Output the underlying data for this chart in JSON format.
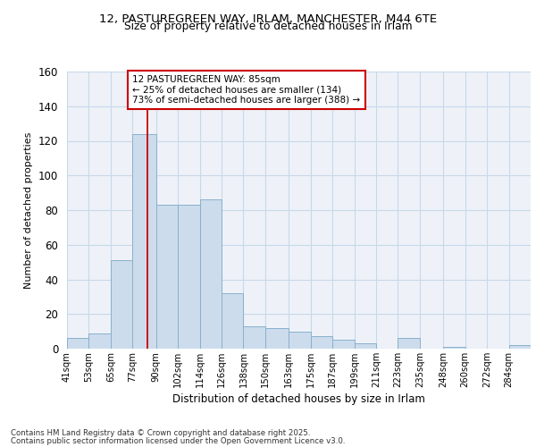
{
  "title1": "12, PASTUREGREEN WAY, IRLAM, MANCHESTER, M44 6TE",
  "title2": "Size of property relative to detached houses in Irlam",
  "xlabel": "Distribution of detached houses by size in Irlam",
  "ylabel": "Number of detached properties",
  "bar_color": "#ccdcec",
  "bar_edge_color": "#8ab0cc",
  "bar_linewidth": 0.7,
  "categories": [
    "41sqm",
    "53sqm",
    "65sqm",
    "77sqm",
    "90sqm",
    "102sqm",
    "114sqm",
    "126sqm",
    "138sqm",
    "150sqm",
    "163sqm",
    "175sqm",
    "187sqm",
    "199sqm",
    "211sqm",
    "223sqm",
    "235sqm",
    "248sqm",
    "260sqm",
    "272sqm",
    "284sqm"
  ],
  "values": [
    6,
    9,
    51,
    124,
    83,
    83,
    86,
    32,
    13,
    12,
    10,
    7,
    5,
    3,
    0,
    6,
    0,
    1,
    0,
    0,
    2
  ],
  "annotation_line1": "12 PASTUREGREEN WAY: 85sqm",
  "annotation_line2": "← 25% of detached houses are smaller (134)",
  "annotation_line3": "73% of semi-detached houses are larger (388) →",
  "vline_color": "#cc0000",
  "annotation_box_color": "#ffffff",
  "annotation_box_edge": "#cc0000",
  "footnote1": "Contains HM Land Registry data © Crown copyright and database right 2025.",
  "footnote2": "Contains public sector information licensed under the Open Government Licence v3.0.",
  "ylim": [
    0,
    160
  ],
  "grid_color": "#c8d8e8",
  "background_color": "#eef2f8",
  "bin_edges": [
    41,
    53,
    65,
    77,
    90,
    102,
    114,
    126,
    138,
    150,
    163,
    175,
    187,
    199,
    211,
    223,
    235,
    248,
    260,
    272,
    284,
    296
  ]
}
